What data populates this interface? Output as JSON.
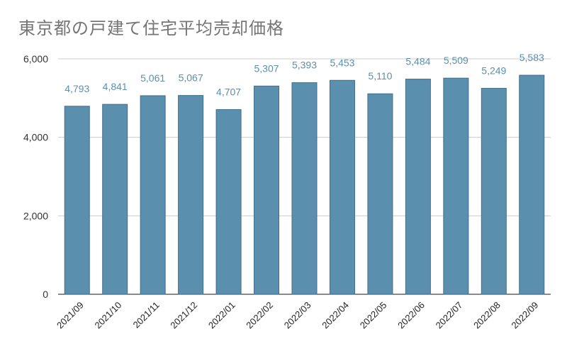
{
  "title": "東京都の戸建て住宅平均売却価格",
  "colors": {
    "bar": "#5b8fae",
    "bar_stroke": "#3f6f8c",
    "grid": "#cccccc",
    "axis": "#444444",
    "label": "#5b8fae"
  },
  "chart_data": {
    "type": "bar",
    "title": "東京都の戸建て住宅平均売却価格",
    "xlabel": "",
    "ylabel": "",
    "categories": [
      "2021/09",
      "2021/10",
      "2021/11",
      "2021/12",
      "2022/01",
      "2022/02",
      "2022/03",
      "2022/04",
      "2022/05",
      "2022/06",
      "2022/07",
      "2022/08",
      "2022/09"
    ],
    "values": [
      4793,
      4841,
      5061,
      5067,
      4707,
      5307,
      5393,
      5453,
      5110,
      5484,
      5509,
      5249,
      5583
    ],
    "value_labels": [
      "4,793",
      "4,841",
      "5,061",
      "5,067",
      "4,707",
      "5,307",
      "5,393",
      "5,453",
      "5,110",
      "5,484",
      "5,509",
      "5,249",
      "5,583"
    ],
    "ylim": [
      0,
      6000
    ],
    "yticks": [
      0,
      2000,
      4000,
      6000
    ],
    "ytick_labels": [
      "0",
      "2,000",
      "4,000",
      "6,000"
    ],
    "grid": true,
    "legend": "none"
  }
}
